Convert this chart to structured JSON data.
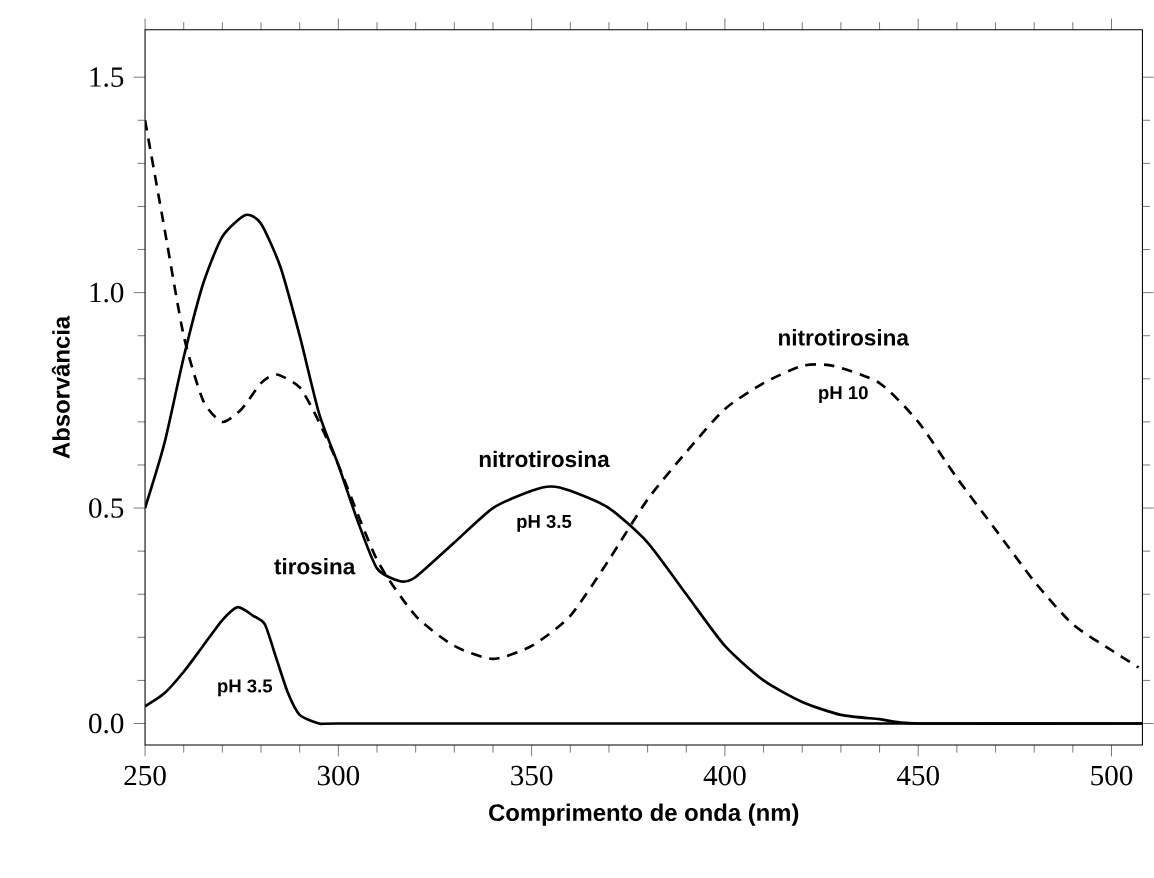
{
  "chart_data": {
    "type": "line",
    "xlabel": "Comprimento de onda (nm)",
    "ylabel": "Absorvância",
    "xlim": [
      250,
      508
    ],
    "ylim": [
      -0.05,
      1.61
    ],
    "xticks": [
      250,
      300,
      350,
      400,
      450,
      500
    ],
    "yticks": [
      {
        "value": 0,
        "label": "0.0"
      },
      {
        "value": 0.5,
        "label": "0.5"
      },
      {
        "value": 1.0,
        "label": "1.0"
      },
      {
        "value": 1.5,
        "label": "1.5"
      }
    ],
    "marker": "none",
    "series": [
      {
        "color": "#000000",
        "line_style": "solid",
        "x": [
          250,
          255,
          260,
          265,
          270,
          274,
          278,
          281,
          284,
          287,
          290,
          295,
          300,
          350,
          400,
          450,
          500,
          508
        ],
        "values": [
          0.04,
          0.07,
          0.12,
          0.18,
          0.24,
          0.27,
          0.25,
          0.23,
          0.15,
          0.07,
          0.02,
          0.0,
          0.0,
          0.0,
          0.0,
          0.0,
          0.0,
          0.0
        ]
      },
      {
        "color": "#000000",
        "line_style": "solid",
        "x": [
          250,
          255,
          260,
          265,
          270,
          276,
          280,
          285,
          290,
          295,
          300,
          305,
          310,
          316,
          320,
          330,
          340,
          350,
          355,
          360,
          370,
          380,
          390,
          400,
          410,
          420,
          430,
          440,
          450,
          500,
          508
        ],
        "values": [
          0.5,
          0.65,
          0.85,
          1.02,
          1.13,
          1.18,
          1.16,
          1.06,
          0.9,
          0.72,
          0.6,
          0.47,
          0.36,
          0.33,
          0.34,
          0.42,
          0.5,
          0.54,
          0.55,
          0.54,
          0.5,
          0.42,
          0.3,
          0.18,
          0.1,
          0.05,
          0.02,
          0.01,
          0.0,
          0.0,
          0.0
        ]
      },
      {
        "color": "#000000",
        "line_style": "dashed",
        "x": [
          250,
          255,
          260,
          265,
          270,
          275,
          280,
          284,
          290,
          295,
          300,
          310,
          320,
          330,
          340,
          350,
          360,
          370,
          380,
          390,
          400,
          410,
          420,
          428,
          440,
          450,
          460,
          470,
          480,
          490,
          500,
          507
        ],
        "values": [
          1.4,
          1.15,
          0.9,
          0.75,
          0.7,
          0.73,
          0.79,
          0.81,
          0.78,
          0.7,
          0.6,
          0.38,
          0.25,
          0.18,
          0.15,
          0.18,
          0.25,
          0.38,
          0.52,
          0.63,
          0.73,
          0.79,
          0.83,
          0.83,
          0.79,
          0.7,
          0.57,
          0.45,
          0.33,
          0.23,
          0.17,
          0.13
        ]
      }
    ],
    "annotations": [
      "tirosina",
      "pH 3.5",
      "nitrotirosina",
      "pH 3.5",
      "nitrotirosina",
      "pH 10"
    ]
  }
}
